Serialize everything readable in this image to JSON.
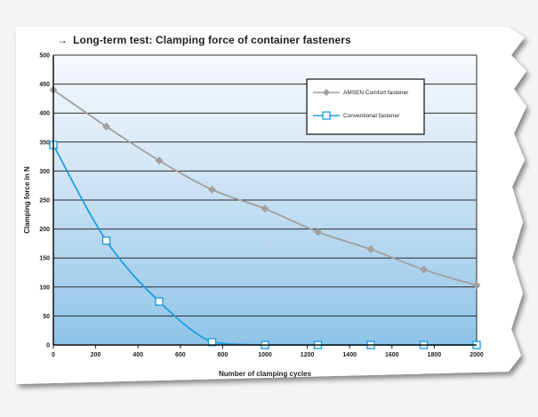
{
  "title_arrow": "→",
  "chart_data": {
    "type": "line",
    "title": "Long-term test: Clamping force of container fasteners",
    "xlabel": "Number of clamping cycles",
    "ylabel": "Clamping force in N",
    "x_ticks": [
      "0",
      "200",
      "400",
      "600",
      "800",
      "1000",
      "1200",
      "1400",
      "1600",
      "1800",
      "2000"
    ],
    "y_ticks": [
      "0",
      "50",
      "100",
      "150",
      "200",
      "250",
      "300",
      "350",
      "400",
      "450",
      "500"
    ],
    "xlim": [
      0,
      2000
    ],
    "ylim": [
      0,
      500
    ],
    "grid": true,
    "legend_position": "top-right",
    "series": [
      {
        "name": "AMSEN Comfort fastener",
        "color": "#a0a0a0",
        "marker": "diamond",
        "x": [
          0,
          250,
          500,
          750,
          1000,
          1250,
          1500,
          1750,
          2000
        ],
        "y": [
          440,
          377,
          318,
          268,
          235,
          195,
          165,
          130,
          103
        ]
      },
      {
        "name": "Conventional fastener",
        "color": "#1e9fe0",
        "marker": "square",
        "x": [
          0,
          250,
          500,
          750,
          1000,
          1250,
          1500,
          1750,
          2000
        ],
        "y": [
          345,
          180,
          75,
          5,
          0,
          0,
          0,
          0,
          0
        ]
      }
    ]
  }
}
